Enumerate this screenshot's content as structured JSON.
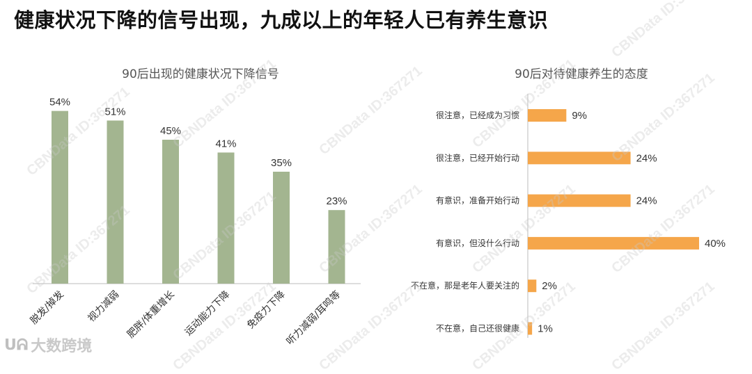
{
  "page": {
    "title": "健康状况下降的信号出现，九成以上的年轻人已有养生意识",
    "watermark": "CBNData ID:367271",
    "logo_text": "大数跨境"
  },
  "colors": {
    "bar_green": "#a3b590",
    "bar_orange": "#f5a64a",
    "axis": "#bbbbbb"
  },
  "chart_data": [
    {
      "type": "bar",
      "title": "90后出现的健康状况下降信号",
      "categories": [
        "脱发/掉发",
        "视力减弱",
        "肥胖/体重增长",
        "运动能力下降",
        "免疫力下降",
        "听力减弱/耳鸣等"
      ],
      "values": [
        54,
        51,
        45,
        41,
        35,
        23
      ],
      "labels": [
        "54%",
        "51%",
        "45%",
        "41%",
        "35%",
        "23%"
      ],
      "unit": "%",
      "ylim": [
        0,
        60
      ],
      "grid": false
    },
    {
      "type": "bar",
      "orientation": "horizontal",
      "title": "90后对待健康养生的态度",
      "categories": [
        "很注意，已经成为习惯",
        "很注意，已经开始行动",
        "有意识，准备开始行动",
        "有意识，但没什么行动",
        "不在意，那是老年人要关注的",
        "不在意，自己还很健康"
      ],
      "values": [
        9,
        24,
        24,
        40,
        2,
        1
      ],
      "labels": [
        "9%",
        "24%",
        "24%",
        "40%",
        "2%",
        "1%"
      ],
      "unit": "%",
      "xlim": [
        0,
        40
      ],
      "grid": false
    }
  ]
}
